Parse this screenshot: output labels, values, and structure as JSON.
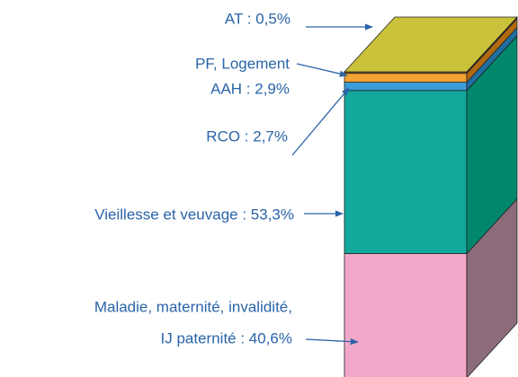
{
  "chart_data": {
    "type": "stacked_bar_3d",
    "values": [
      40.6,
      53.3,
      2.7,
      2.9,
      0.5
    ],
    "labels": [
      [
        "Maladie, maternité, invalidité,",
        "IJ paternité :  40,6%"
      ],
      [
        "Vieillesse et veuvage : 53,3%"
      ],
      [
        "RCO : 2,7%"
      ],
      [
        "PF, Logement",
        "AAH : 2,9%"
      ],
      [
        "AT :  0,5%"
      ]
    ],
    "colors": [
      "#f2a8c8",
      "#12a89c",
      "#3a9ed8",
      "#f4a234",
      "#8a5a2a"
    ],
    "side_colors": [
      "#8c6c7a",
      "#00876c",
      "#1f6fa0",
      "#b06a10",
      "#5a3a18"
    ],
    "top_color": "#c9c23a"
  }
}
